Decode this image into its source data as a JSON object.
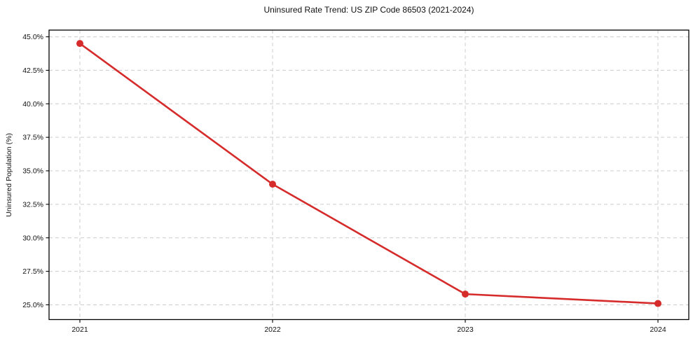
{
  "figure": {
    "title": "Uninsured Rate Trend: US ZIP Code 86503 (2021-2024)"
  },
  "chart_data": {
    "type": "line",
    "title": "Uninsured Rate Trend: US ZIP Code 86503 (2021-2024)",
    "xlabel": "",
    "ylabel": "Uninsured Population (%)",
    "x": [
      2021,
      2022,
      2023,
      2024
    ],
    "xtick_labels": [
      "2021",
      "2022",
      "2023",
      "2024"
    ],
    "series": [
      {
        "name": "Uninsured rate",
        "values": [
          44.5,
          34.0,
          25.8,
          25.1
        ],
        "color": "#d62b2b",
        "marker": "circle"
      }
    ],
    "yticks": [
      25.0,
      27.5,
      30.0,
      32.5,
      35.0,
      37.5,
      40.0,
      42.5,
      45.0
    ],
    "ytick_labels": [
      "25.0%",
      "27.5%",
      "30.0%",
      "32.5%",
      "35.0%",
      "37.5%",
      "40.0%",
      "42.5%",
      "45.0%"
    ],
    "xlim": [
      2020.84,
      2024.16
    ],
    "ylim": [
      23.9,
      45.5
    ],
    "grid": true,
    "grid_style": "dashed",
    "legend": false
  },
  "colors": {
    "line": "#d62b2b",
    "grid": "#cccccc",
    "axis": "#000000",
    "text": "#111111",
    "background": "#ffffff"
  }
}
